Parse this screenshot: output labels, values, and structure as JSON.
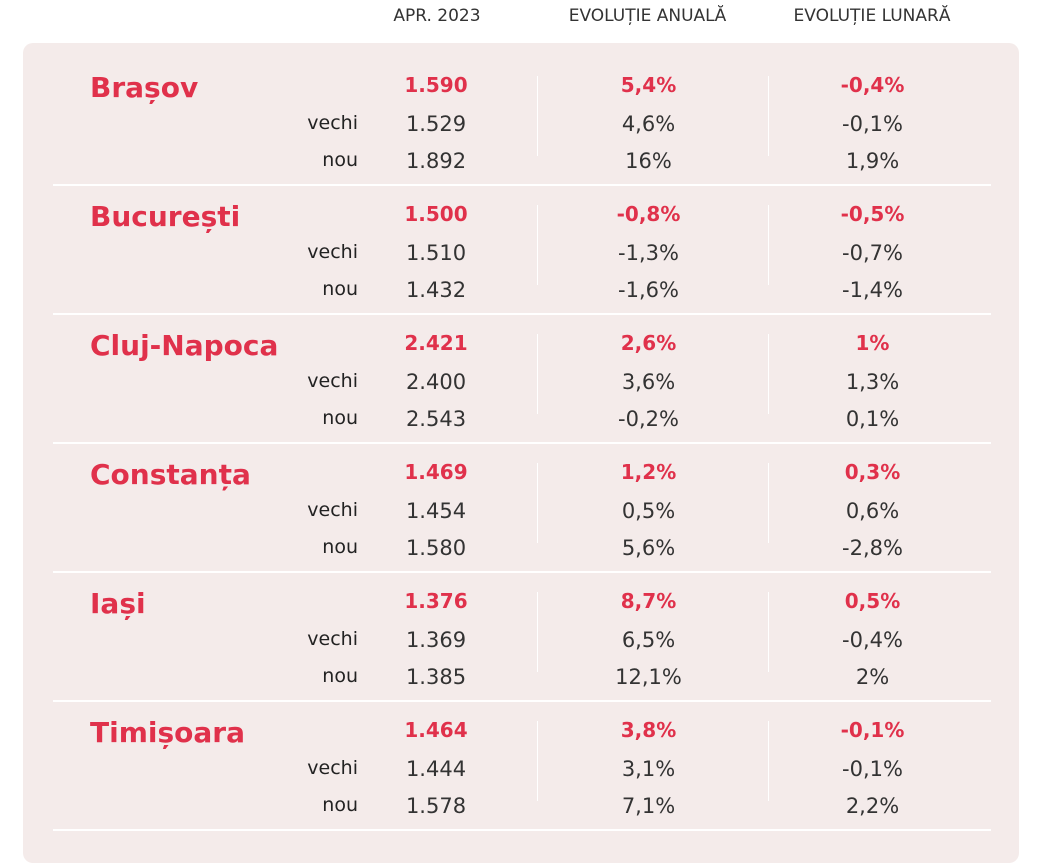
{
  "header": {
    "price": "APR. 2023",
    "annual": "EVOLUȚIE ANUALĂ",
    "monthly": "EVOLUȚIE LUNARĂ"
  },
  "labels": {
    "old": "vechi",
    "new": "nou"
  },
  "cities": [
    {
      "name": "Brașov",
      "total": {
        "price": "1.590",
        "annual": "5,4%",
        "monthly": "-0,4%"
      },
      "old": {
        "price": "1.529",
        "annual": "4,6%",
        "monthly": "-0,1%"
      },
      "new": {
        "price": "1.892",
        "annual": "16%",
        "monthly": "1,9%"
      }
    },
    {
      "name": "București",
      "total": {
        "price": "1.500",
        "annual": "-0,8%",
        "monthly": "-0,5%"
      },
      "old": {
        "price": "1.510",
        "annual": "-1,3%",
        "monthly": "-0,7%"
      },
      "new": {
        "price": "1.432",
        "annual": "-1,6%",
        "monthly": "-1,4%"
      }
    },
    {
      "name": "Cluj-Napoca",
      "total": {
        "price": "2.421",
        "annual": "2,6%",
        "monthly": "1%"
      },
      "old": {
        "price": "2.400",
        "annual": "3,6%",
        "monthly": "1,3%"
      },
      "new": {
        "price": "2.543",
        "annual": "-0,2%",
        "monthly": "0,1%"
      }
    },
    {
      "name": "Constanța",
      "total": {
        "price": "1.469",
        "annual": "1,2%",
        "monthly": "0,3%"
      },
      "old": {
        "price": "1.454",
        "annual": "0,5%",
        "monthly": "0,6%"
      },
      "new": {
        "price": "1.580",
        "annual": "5,6%",
        "monthly": "-2,8%"
      }
    },
    {
      "name": "Iași",
      "total": {
        "price": "1.376",
        "annual": "8,7%",
        "monthly": "0,5%"
      },
      "old": {
        "price": "1.369",
        "annual": "6,5%",
        "monthly": "-0,4%"
      },
      "new": {
        "price": "1.385",
        "annual": "12,1%",
        "monthly": "2%"
      }
    },
    {
      "name": "Timișoara",
      "total": {
        "price": "1.464",
        "annual": "3,8%",
        "monthly": "-0,1%"
      },
      "old": {
        "price": "1.444",
        "annual": "3,1%",
        "monthly": "-0,1%"
      },
      "new": {
        "price": "1.578",
        "annual": "7,1%",
        "monthly": "2,2%"
      }
    }
  ],
  "colors": {
    "accent": "#e0314b",
    "panel_bg": "#f4ebea",
    "text": "#333333"
  }
}
